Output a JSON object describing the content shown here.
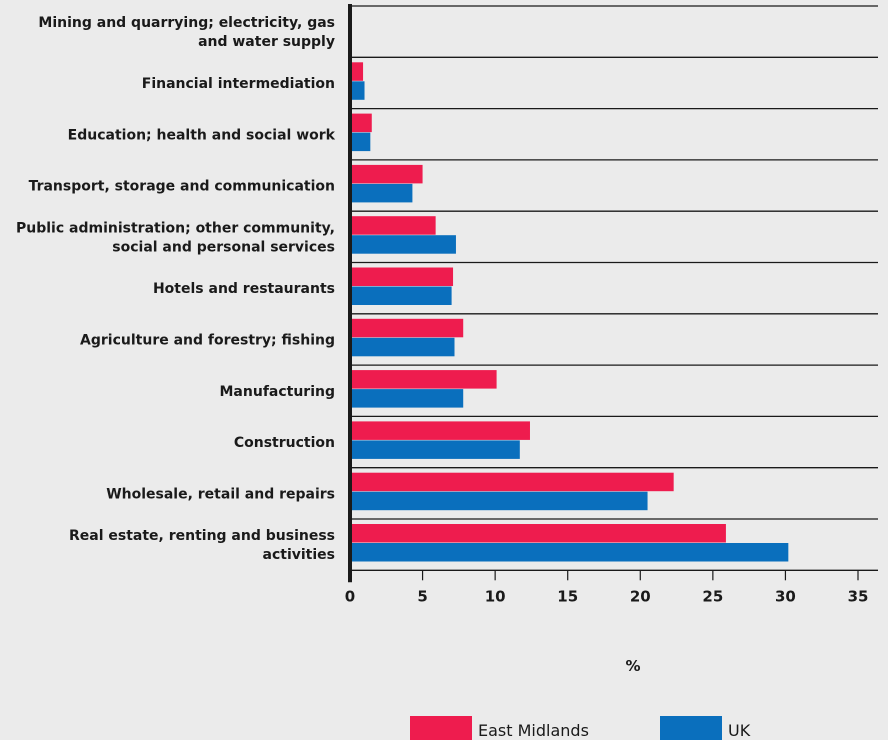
{
  "chart_data": {
    "type": "bar",
    "orientation": "horizontal",
    "categories": [
      [
        "Mining and quarrying; electricity, gas",
        "and water supply"
      ],
      [
        "Financial intermediation"
      ],
      [
        "Education; health and social work"
      ],
      [
        "Transport, storage and communication"
      ],
      [
        "Public administration; other community,",
        "social and personal services"
      ],
      [
        "Hotels and restaurants"
      ],
      [
        "Agriculture and forestry; fishing"
      ],
      [
        "Manufacturing"
      ],
      [
        "Construction"
      ],
      [
        "Wholesale, retail and repairs"
      ],
      [
        "Real estate, renting and business",
        "activities"
      ]
    ],
    "series": [
      {
        "name": "East Midlands",
        "color": "#ee1c4e",
        "values": [
          0,
          0.9,
          1.5,
          5.0,
          5.9,
          7.1,
          7.8,
          10.1,
          12.4,
          22.3,
          25.9
        ]
      },
      {
        "name": "UK",
        "color": "#0a6fbd",
        "values": [
          0,
          1.0,
          1.4,
          4.3,
          7.3,
          7.0,
          7.2,
          7.8,
          11.7,
          20.5,
          30.2
        ]
      }
    ],
    "xticks": [
      "0",
      "5",
      "10",
      "15",
      "20",
      "25",
      "30",
      "35"
    ],
    "xlim": [
      0,
      35
    ],
    "xlabel": "%",
    "legend_position": "bottom"
  }
}
